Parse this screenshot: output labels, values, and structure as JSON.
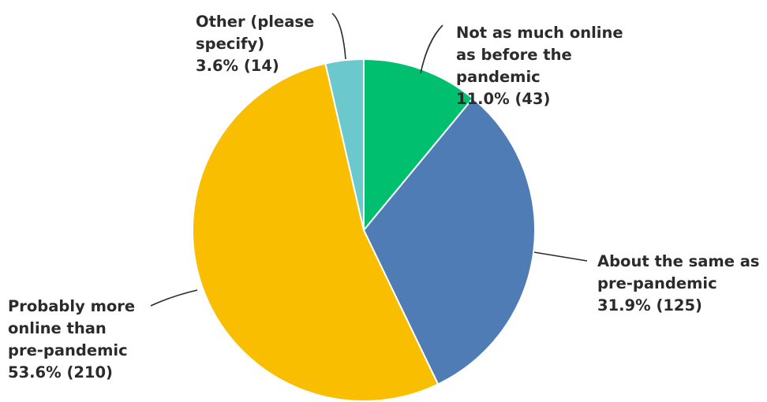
{
  "chart_data": {
    "type": "pie",
    "title": "",
    "slices": [
      {
        "label": "Not as much online as before the pandemic",
        "label_lines": [
          "Not as much online",
          "as before the",
          "pandemic"
        ],
        "value_text": "11.0% (43)",
        "percent": 11.0,
        "count": 43,
        "color": "#00bf6f"
      },
      {
        "label": "About the same as pre-pandemic",
        "label_lines": [
          "About the same as",
          "pre-pandemic"
        ],
        "value_text": "31.9% (125)",
        "percent": 31.9,
        "count": 125,
        "color": "#507cb6"
      },
      {
        "label": "Probably more online than pre-pandemic",
        "label_lines": [
          "Probably more",
          "online than",
          "pre-pandemic"
        ],
        "value_text": "53.6% (210)",
        "percent": 53.6,
        "count": 210,
        "color": "#f9be00"
      },
      {
        "label": "Other (please specify)",
        "label_lines": [
          "Other (please",
          "specify)"
        ],
        "value_text": "3.6% (14)",
        "percent": 3.6,
        "count": 14,
        "color": "#6bc8cd"
      }
    ]
  }
}
